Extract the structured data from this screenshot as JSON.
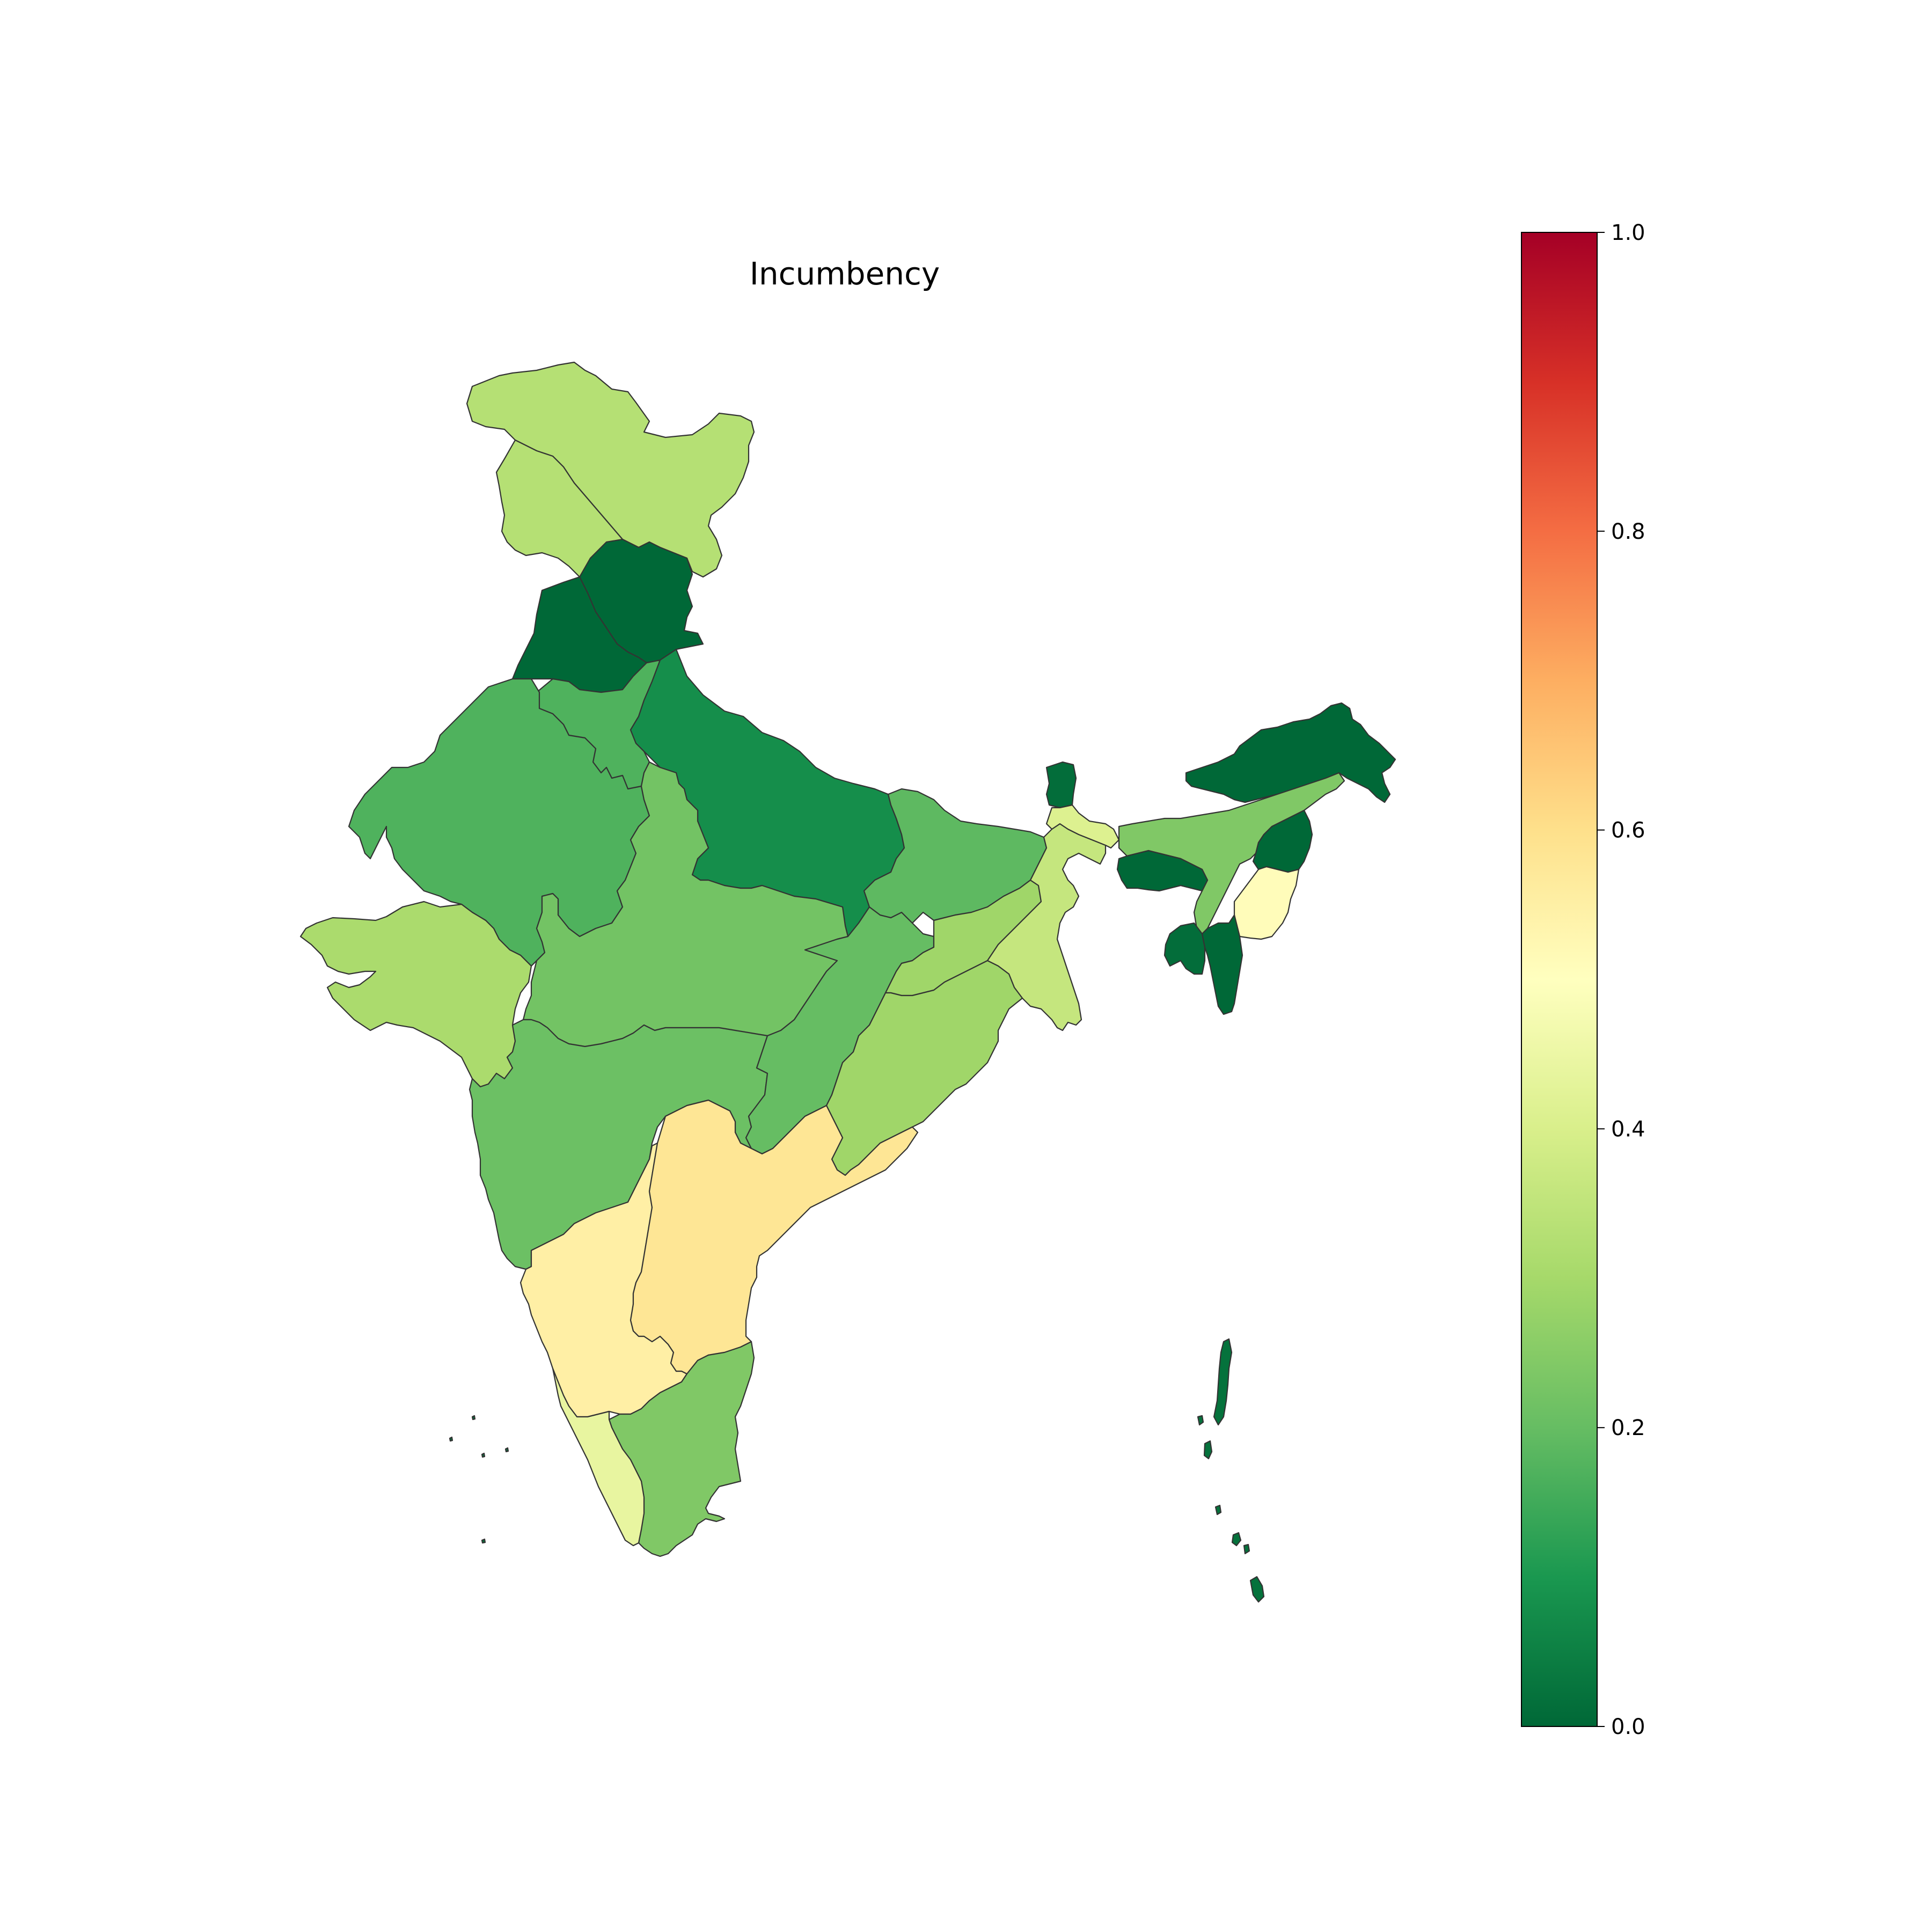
{
  "chart_data": {
    "type": "choropleth",
    "title": "Incumbency",
    "colormap": "RdYlGn_r",
    "colorbar": {
      "range": [
        0.0,
        1.0
      ],
      "ticks": [
        "0.0",
        "0.2",
        "0.4",
        "0.6",
        "0.8",
        "1.0"
      ],
      "placement": "right",
      "stops": [
        {
          "offset": 0.0,
          "color": "#006837"
        },
        {
          "offset": 0.1,
          "color": "#1a9850"
        },
        {
          "offset": 0.2,
          "color": "#66bd63"
        },
        {
          "offset": 0.3,
          "color": "#a6d96a"
        },
        {
          "offset": 0.4,
          "color": "#d9ef8b"
        },
        {
          "offset": 0.5,
          "color": "#ffffbf"
        },
        {
          "offset": 0.6,
          "color": "#fee08b"
        },
        {
          "offset": 0.7,
          "color": "#fdae61"
        },
        {
          "offset": 0.8,
          "color": "#f46d43"
        },
        {
          "offset": 0.9,
          "color": "#d73027"
        },
        {
          "offset": 1.0,
          "color": "#a50026"
        }
      ]
    },
    "regions": [
      {
        "id": "north-a",
        "value": 0.33
      },
      {
        "id": "north-b",
        "value": 0.33
      },
      {
        "id": "north-c",
        "value": 0.0
      },
      {
        "id": "north-d",
        "value": 0.0
      },
      {
        "id": "north-e",
        "value": 0.17
      },
      {
        "id": "north-f",
        "value": 0.08
      },
      {
        "id": "west-a",
        "value": 0.17
      },
      {
        "id": "west-b",
        "value": 0.31
      },
      {
        "id": "central-a",
        "value": 0.22
      },
      {
        "id": "central-b",
        "value": 0.21
      },
      {
        "id": "central-c",
        "value": 0.2
      },
      {
        "id": "east-a",
        "value": 0.19
      },
      {
        "id": "east-b",
        "value": 0.36
      },
      {
        "id": "east-c",
        "value": 0.29
      },
      {
        "id": "south-a",
        "value": 0.55
      },
      {
        "id": "south-b",
        "value": 0.58
      },
      {
        "id": "south-c",
        "value": 0.24
      },
      {
        "id": "south-d",
        "value": 0.44
      },
      {
        "id": "northeast-a",
        "value": 0.0
      },
      {
        "id": "northeast-b",
        "value": 0.24
      },
      {
        "id": "northeast-c",
        "value": 0.0
      },
      {
        "id": "northeast-d",
        "value": 0.0
      },
      {
        "id": "northeast-e",
        "value": 0.51
      },
      {
        "id": "northeast-f",
        "value": 0.01
      },
      {
        "id": "northeast-g",
        "value": 0.41
      },
      {
        "id": "northeast-h",
        "value": 0.01
      },
      {
        "id": "islands-a",
        "value": 0.02
      },
      {
        "id": "islands-b",
        "value": 0.02
      }
    ]
  }
}
